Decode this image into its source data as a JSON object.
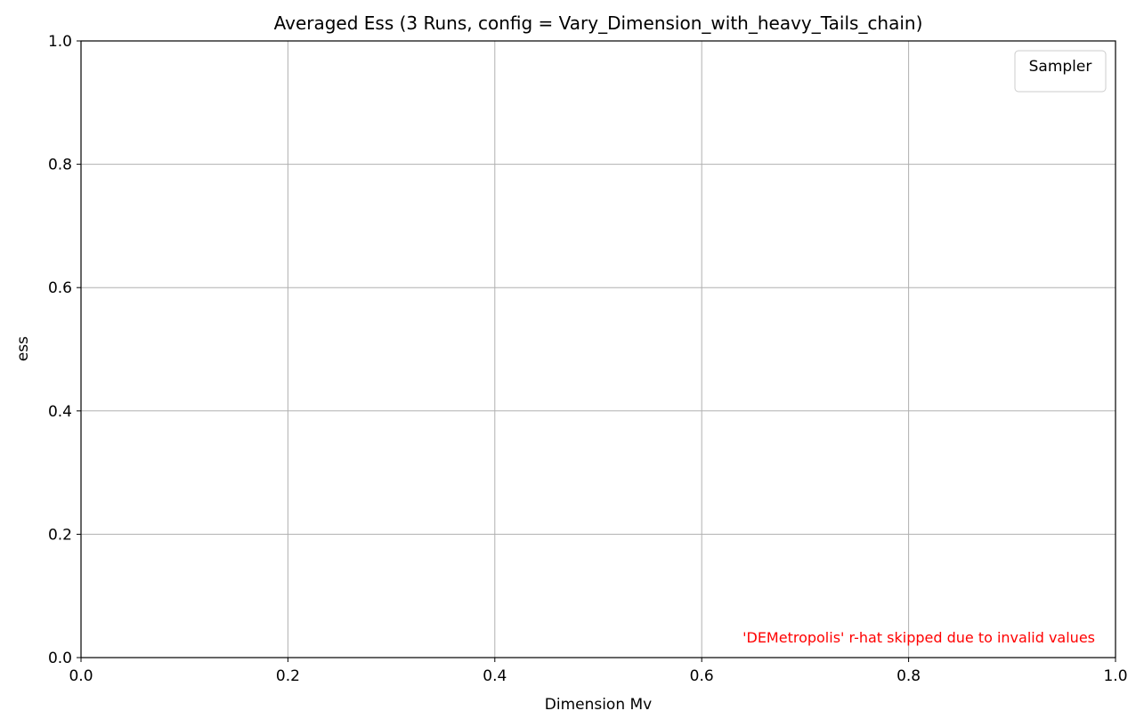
{
  "chart_data": {
    "type": "line",
    "title": "Averaged Ess (3 Runs, config = Vary_Dimension_with_heavy_Tails_chain)",
    "xlabel": "Dimension Mv",
    "ylabel": "ess",
    "xlim": [
      0.0,
      1.0
    ],
    "ylim": [
      0.0,
      1.0
    ],
    "x_ticks": [
      {
        "value": 0.0,
        "label": "0.0"
      },
      {
        "value": 0.2,
        "label": "0.2"
      },
      {
        "value": 0.4,
        "label": "0.4"
      },
      {
        "value": 0.6,
        "label": "0.6"
      },
      {
        "value": 0.8,
        "label": "0.8"
      },
      {
        "value": 1.0,
        "label": "1.0"
      }
    ],
    "y_ticks": [
      {
        "value": 0.0,
        "label": "0.0"
      },
      {
        "value": 0.2,
        "label": "0.2"
      },
      {
        "value": 0.4,
        "label": "0.4"
      },
      {
        "value": 0.6,
        "label": "0.6"
      },
      {
        "value": 0.8,
        "label": "0.8"
      },
      {
        "value": 1.0,
        "label": "1.0"
      }
    ],
    "grid": true,
    "series": [],
    "legend": {
      "title": "Sampler",
      "placement": "top-right",
      "entries": []
    },
    "annotation": {
      "text": "'DEMetropolis' r-hat skipped due to invalid values",
      "placement": "bottom-right",
      "color": "#ff0000"
    }
  }
}
